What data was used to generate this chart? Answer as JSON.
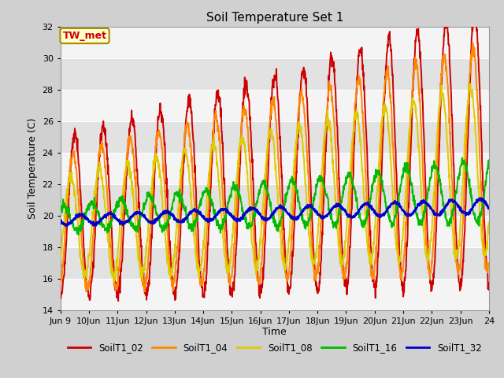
{
  "title": "Soil Temperature Set 1",
  "xlabel": "Time",
  "ylabel": "Soil Temperature (C)",
  "ylim": [
    14,
    32
  ],
  "annotation": "TW_met",
  "annotation_color": "#cc0000",
  "annotation_bg": "#ffffcc",
  "annotation_border": "#aa8800",
  "series": [
    {
      "label": "SoilT1_02",
      "color": "#cc0000",
      "depth": 2
    },
    {
      "label": "SoilT1_04",
      "color": "#ff8800",
      "depth": 4
    },
    {
      "label": "SoilT1_08",
      "color": "#ddcc00",
      "depth": 8
    },
    {
      "label": "SoilT1_16",
      "color": "#00bb00",
      "depth": 16
    },
    {
      "label": "SoilT1_32",
      "color": "#0000cc",
      "depth": 32
    }
  ],
  "band_light": "#f4f4f4",
  "band_dark": "#e2e2e2",
  "fig_bg": "#d0d0d0",
  "plot_bg": "#e8e8e8"
}
